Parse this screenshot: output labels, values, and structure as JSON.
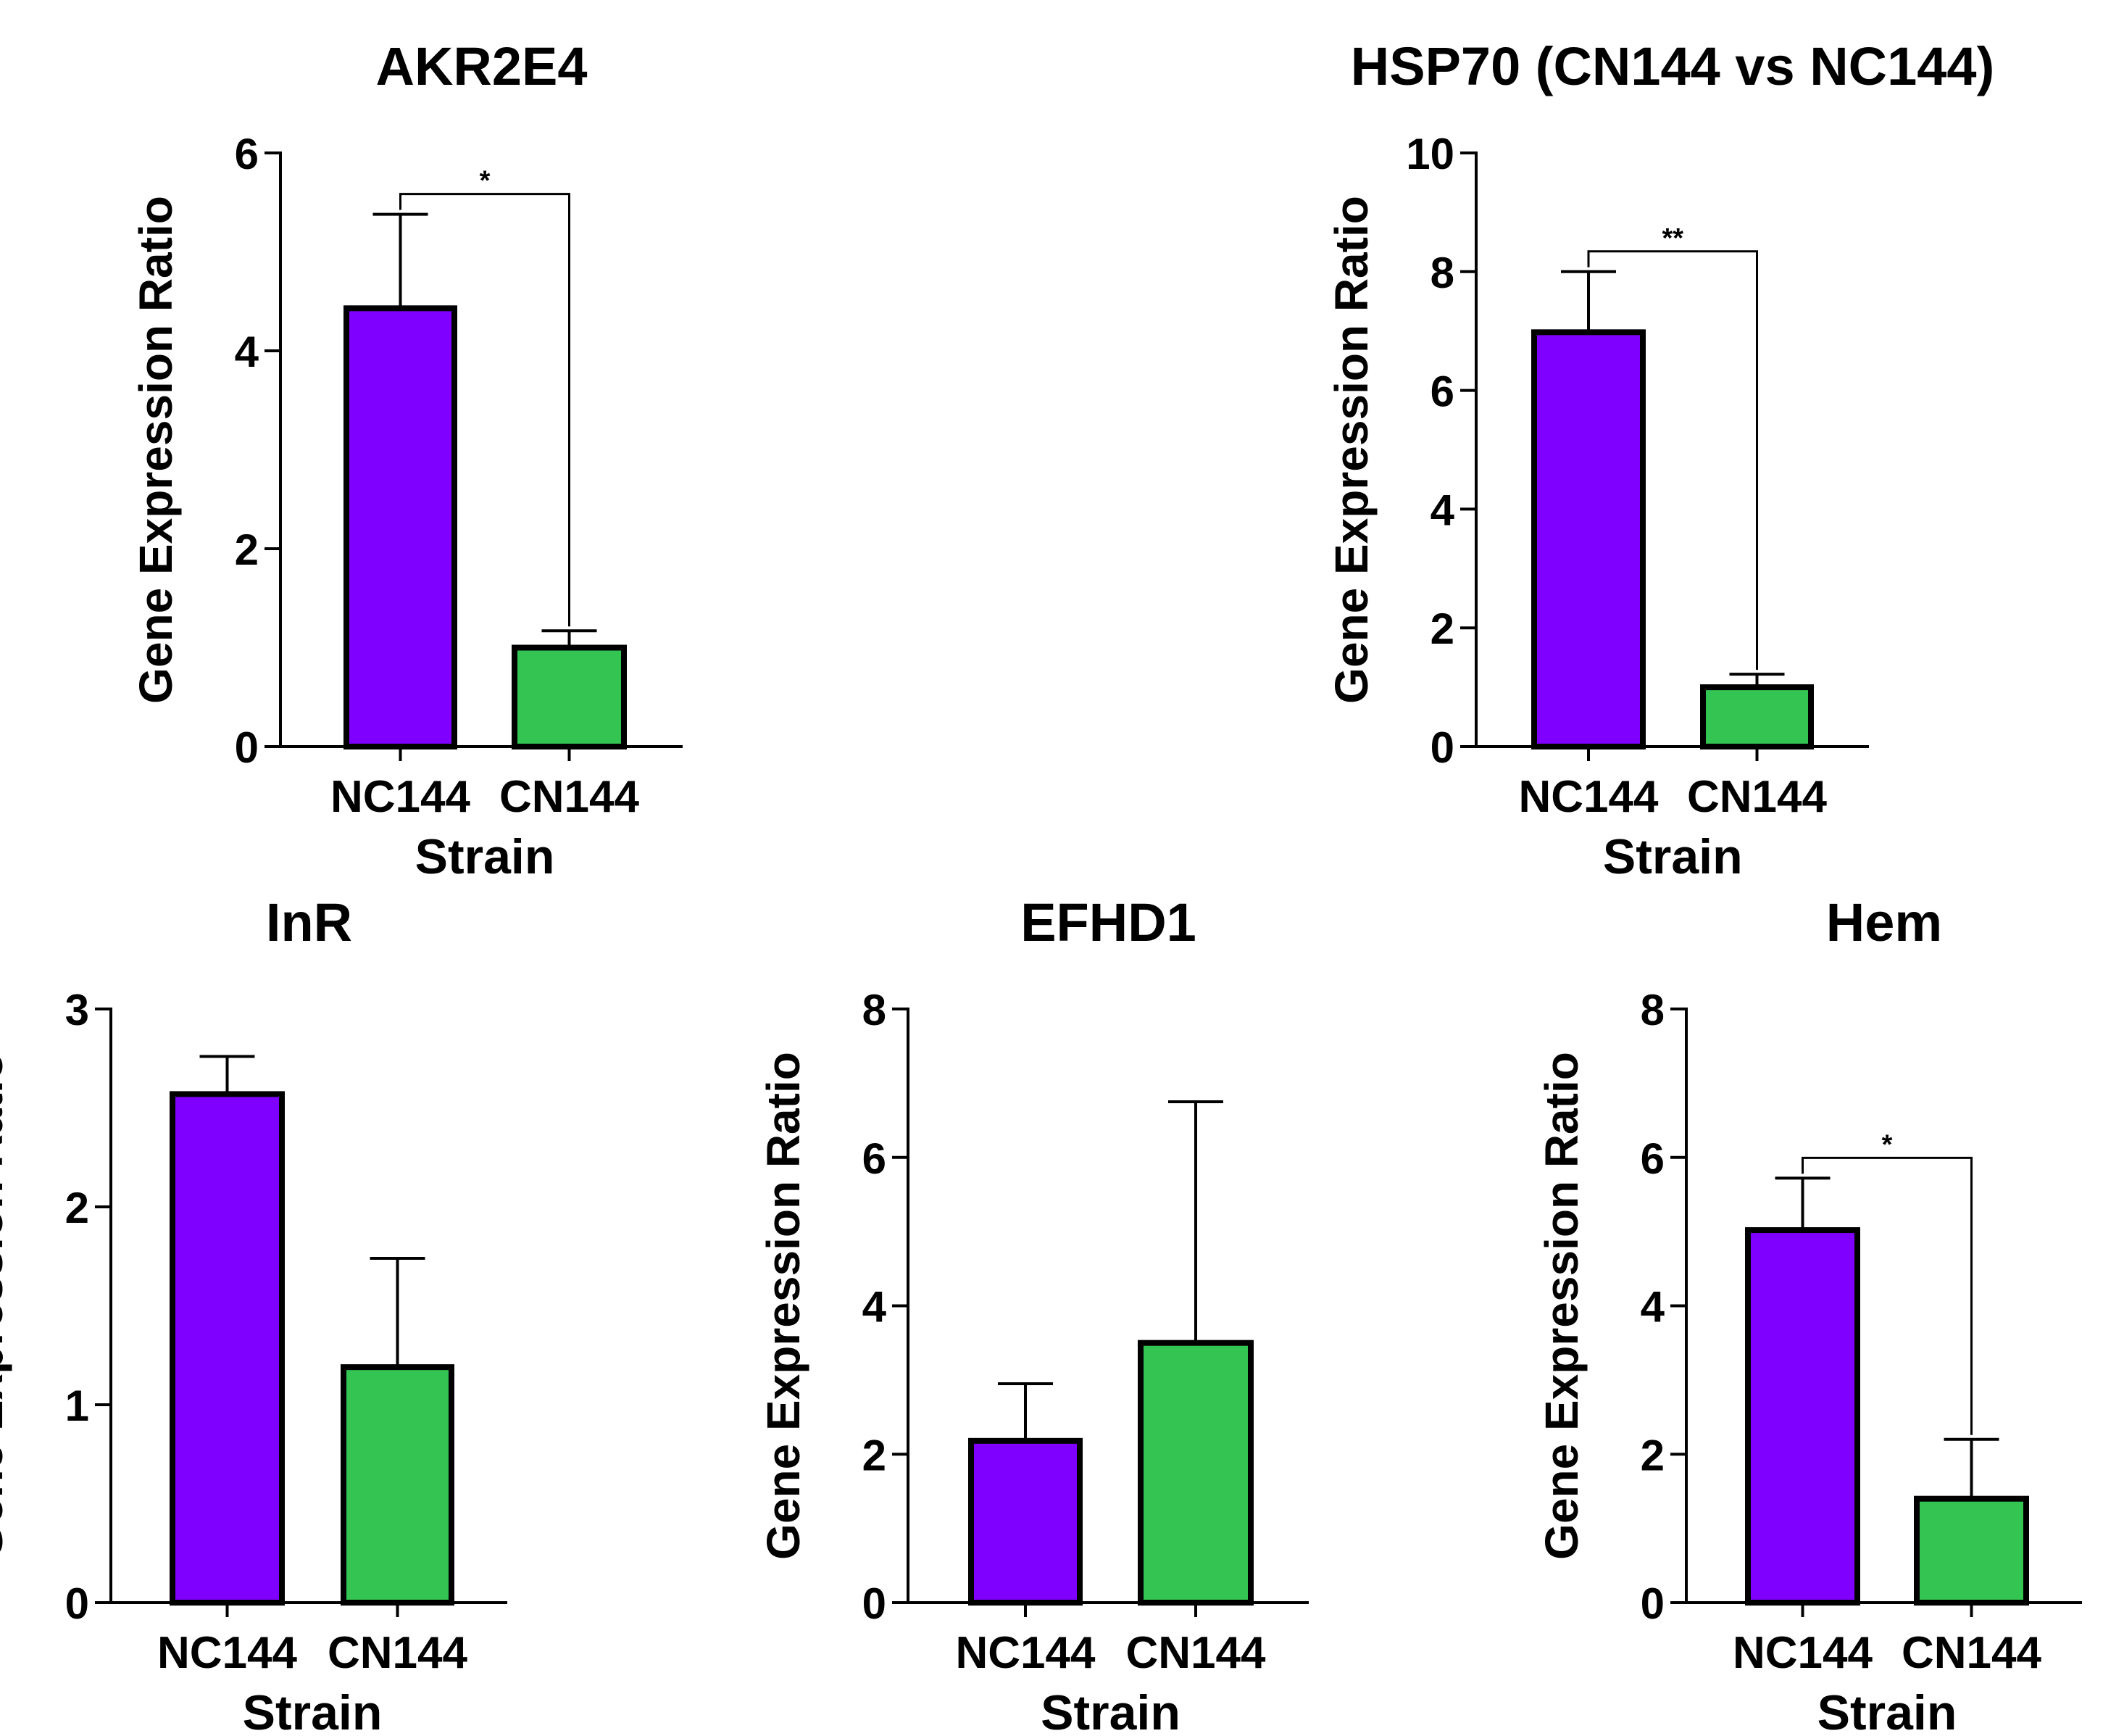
{
  "colors": {
    "nc144": "#8000FF",
    "cn144": "#33C452",
    "outline": "#000000"
  },
  "chart_data": [
    {
      "type": "bar",
      "title": "AKR2E4",
      "xlabel": "Strain",
      "ylabel": "Gene Expression Ratio",
      "categories": [
        "NC144",
        "CN144"
      ],
      "values": [
        4.43,
        1.0
      ],
      "errors": [
        0.95,
        0.17
      ],
      "ylim": [
        0,
        6
      ],
      "yticks": [
        0,
        2,
        4,
        6
      ],
      "significance": "*"
    },
    {
      "type": "bar",
      "title": "HSP70 (CN144 vs NC144)",
      "xlabel": "Strain",
      "ylabel": "Gene Expression Ratio",
      "categories": [
        "NC144",
        "CN144"
      ],
      "values": [
        6.98,
        1.0
      ],
      "errors": [
        1.02,
        0.22
      ],
      "ylim": [
        0,
        10
      ],
      "yticks": [
        0,
        2,
        4,
        6,
        8,
        10
      ],
      "significance": "**"
    },
    {
      "type": "bar",
      "title": "InR",
      "xlabel": "Strain",
      "ylabel": "Gene Expression Ratio",
      "categories": [
        "NC144",
        "CN144"
      ],
      "values": [
        2.57,
        1.19
      ],
      "errors": [
        0.19,
        0.55
      ],
      "ylim": [
        0,
        3
      ],
      "yticks": [
        0,
        1,
        2,
        3
      ],
      "significance": ""
    },
    {
      "type": "bar",
      "title": "EFHD1",
      "xlabel": "Strain",
      "ylabel": "Gene Expression Ratio",
      "categories": [
        "NC144",
        "CN144"
      ],
      "values": [
        2.18,
        3.5
      ],
      "errors": [
        0.77,
        3.25
      ],
      "ylim": [
        0,
        8
      ],
      "yticks": [
        0,
        2,
        4,
        6,
        8
      ],
      "significance": ""
    },
    {
      "type": "bar",
      "title": "Hem",
      "xlabel": "Strain",
      "ylabel": "Gene Expression Ratio",
      "categories": [
        "NC144",
        "CN144"
      ],
      "values": [
        5.02,
        1.4
      ],
      "errors": [
        0.7,
        0.8
      ],
      "ylim": [
        0,
        8
      ],
      "yticks": [
        0,
        2,
        4,
        6,
        8
      ],
      "significance": "*"
    }
  ]
}
